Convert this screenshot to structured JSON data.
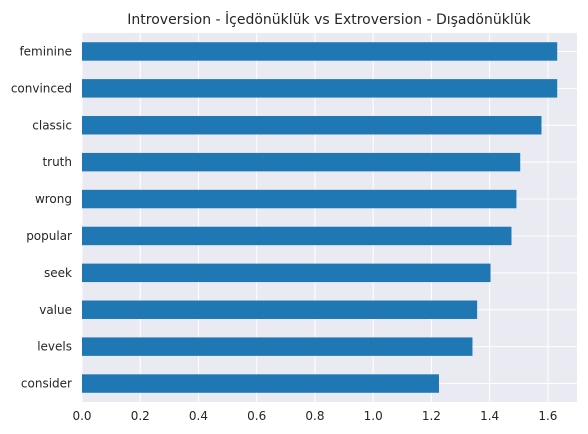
{
  "chart_data": {
    "type": "bar",
    "orientation": "horizontal",
    "title": "Introversion - İçedönüklük vs Extroversion - Dışadönüklük",
    "xlabel": "",
    "ylabel": "",
    "categories": [
      "feminine",
      "convinced",
      "classic",
      "truth",
      "wrong",
      "popular",
      "seek",
      "value",
      "levels",
      "consider"
    ],
    "values": [
      1.632,
      1.632,
      1.578,
      1.505,
      1.492,
      1.475,
      1.403,
      1.357,
      1.341,
      1.226
    ],
    "xlim": [
      0,
      1.7
    ],
    "xticks": [
      "0.0",
      "0.2",
      "0.4",
      "0.6",
      "0.8",
      "1.0",
      "1.2",
      "1.4",
      "1.6"
    ],
    "grid": true,
    "colors": {
      "bar": "#1f77b4",
      "plot_bg": "#eaeaf2",
      "grid": "#ffffff"
    }
  }
}
